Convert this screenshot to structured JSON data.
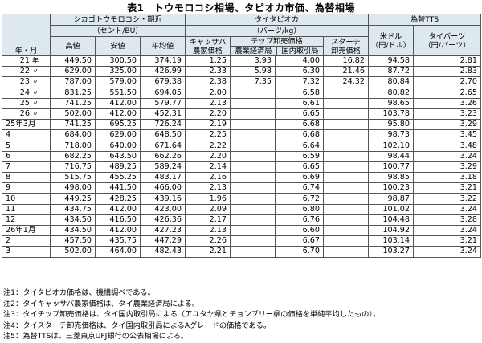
{
  "title": "表1　トウモロコシ相場、タピオカ市価、為替相場",
  "headers": {
    "period": "年・月",
    "corn_group": "シカゴトウモロコシ・期近",
    "corn_unit": "（セント/BU）",
    "corn_high": "高値",
    "corn_low": "安値",
    "corn_avg": "平均値",
    "tapioca_group": "タイタピオカ",
    "tapioca_unit": "（バーツ/kg）",
    "cassava_line1": "キャッサバ",
    "cassava_line2": "農家価格",
    "chip_group": "チップ卸売価格",
    "chip_ag": "農業経済局",
    "chip_dom": "国内取引局",
    "starch_line1": "スターチ",
    "starch_line2": "卸売価格",
    "fx_group": "為替TTS",
    "usd_line1": "米ドル",
    "usd_line2": "（円/ドル）",
    "baht_line1": "タイバーツ",
    "baht_line2": "（円/バーツ）"
  },
  "rows_annual": [
    {
      "main": "21",
      "suffix": "年",
      "high": "449.50",
      "low": "300.50",
      "avg": "374.19",
      "cassava": "1.25",
      "chip_ag": "3.93",
      "chip_dom": "4.00",
      "starch": "16.82",
      "usd": "94.58",
      "baht": "2.81"
    },
    {
      "main": "22",
      "suffix": "〃",
      "high": "629.00",
      "low": "325.00",
      "avg": "426.99",
      "cassava": "2.33",
      "chip_ag": "5.98",
      "chip_dom": "6.30",
      "starch": "21.46",
      "usd": "87.72",
      "baht": "2.83"
    },
    {
      "main": "23",
      "suffix": "〃",
      "high": "787.00",
      "low": "579.00",
      "avg": "679.38",
      "cassava": "2.38",
      "chip_ag": "7.35",
      "chip_dom": "7.32",
      "starch": "24.32",
      "usd": "80.84",
      "baht": "2.70"
    },
    {
      "main": "24",
      "suffix": "〃",
      "high": "831.25",
      "low": "551.50",
      "avg": "694.05",
      "cassava": "2.00",
      "chip_ag": "",
      "chip_dom": "6.58",
      "starch": "",
      "usd": "80.82",
      "baht": "2.65"
    },
    {
      "main": "25",
      "suffix": "〃",
      "high": "741.25",
      "low": "412.00",
      "avg": "579.77",
      "cassava": "2.13",
      "chip_ag": "",
      "chip_dom": "6.61",
      "starch": "",
      "usd": "98.65",
      "baht": "3.26"
    },
    {
      "main": "26",
      "suffix": "〃",
      "high": "502.00",
      "low": "412.00",
      "avg": "452.31",
      "cassava": "2.20",
      "chip_ag": "",
      "chip_dom": "6.65",
      "starch": "",
      "usd": "103.78",
      "baht": "3.23"
    }
  ],
  "rows_monthly": [
    {
      "label": "25年3月",
      "high": "741.25",
      "low": "695.25",
      "avg": "726.24",
      "cassava": "2.19",
      "chip_ag": "",
      "chip_dom": "6.68",
      "starch": "",
      "usd": "95.80",
      "baht": "3.29"
    },
    {
      "label": "4",
      "high": "684.00",
      "low": "629.00",
      "avg": "648.50",
      "cassava": "2.25",
      "chip_ag": "",
      "chip_dom": "6.68",
      "starch": "",
      "usd": "98.73",
      "baht": "3.45"
    },
    {
      "label": "5",
      "high": "718.00",
      "low": "640.00",
      "avg": "671.64",
      "cassava": "2.22",
      "chip_ag": "",
      "chip_dom": "6.64",
      "starch": "",
      "usd": "102.10",
      "baht": "3.48"
    },
    {
      "label": "6",
      "high": "682.25",
      "low": "643.50",
      "avg": "662.26",
      "cassava": "2.20",
      "chip_ag": "",
      "chip_dom": "6.59",
      "starch": "",
      "usd": "98.44",
      "baht": "3.24"
    },
    {
      "label": "7",
      "high": "716.75",
      "low": "489.25",
      "avg": "589.24",
      "cassava": "2.14",
      "chip_ag": "",
      "chip_dom": "6.65",
      "starch": "",
      "usd": "100.77",
      "baht": "3.29"
    },
    {
      "label": "8",
      "high": "515.75",
      "low": "455.25",
      "avg": "483.17",
      "cassava": "2.16",
      "chip_ag": "",
      "chip_dom": "6.69",
      "starch": "",
      "usd": "98.85",
      "baht": "3.18"
    },
    {
      "label": "9",
      "high": "498.00",
      "low": "441.50",
      "avg": "466.00",
      "cassava": "2.13",
      "chip_ag": "",
      "chip_dom": "6.74",
      "starch": "",
      "usd": "100.23",
      "baht": "3.21"
    },
    {
      "label": "10",
      "high": "449.25",
      "low": "428.25",
      "avg": "439.16",
      "cassava": "1.96",
      "chip_ag": "",
      "chip_dom": "6.72",
      "starch": "",
      "usd": "98.87",
      "baht": "3.22"
    },
    {
      "label": "11",
      "high": "434.75",
      "low": "412.00",
      "avg": "423.00",
      "cassava": "2.09",
      "chip_ag": "",
      "chip_dom": "6.80",
      "starch": "",
      "usd": "101.02",
      "baht": "3.24"
    },
    {
      "label": "12",
      "high": "434.50",
      "low": "416.50",
      "avg": "426.36",
      "cassava": "2.17",
      "chip_ag": "",
      "chip_dom": "6.76",
      "starch": "",
      "usd": "104.48",
      "baht": "3.28"
    },
    {
      "label": "26年1月",
      "high": "434.50",
      "low": "412.00",
      "avg": "427.23",
      "cassava": "2.13",
      "chip_ag": "",
      "chip_dom": "6.60",
      "starch": "",
      "usd": "104.92",
      "baht": "3.24"
    },
    {
      "label": "2",
      "high": "457.50",
      "low": "435.75",
      "avg": "447.29",
      "cassava": "2.26",
      "chip_ag": "",
      "chip_dom": "6.67",
      "starch": "",
      "usd": "103.14",
      "baht": "3.21"
    },
    {
      "label": "3",
      "high": "502.00",
      "low": "464.00",
      "avg": "482.43",
      "cassava": "2.21",
      "chip_ag": "",
      "chip_dom": "6.70",
      "starch": "",
      "usd": "103.27",
      "baht": "3.24"
    }
  ],
  "notes": [
    "注1：タイタピオカ価格は、機構調べである。",
    "注2：タイキャッサバ農家価格は、タイ農業経済局による。",
    "注3：タイチップ卸売価格は、タイ国内取引局による（アユタヤ県とチョンブリー県の価格を単純平均したもの）。",
    "注4：タイスターチ卸売価格は、タイ国内取引局によるAグレードの価格である。",
    "注5：為替TTSは、三菱東京UFJ銀行の公表相場による。"
  ]
}
